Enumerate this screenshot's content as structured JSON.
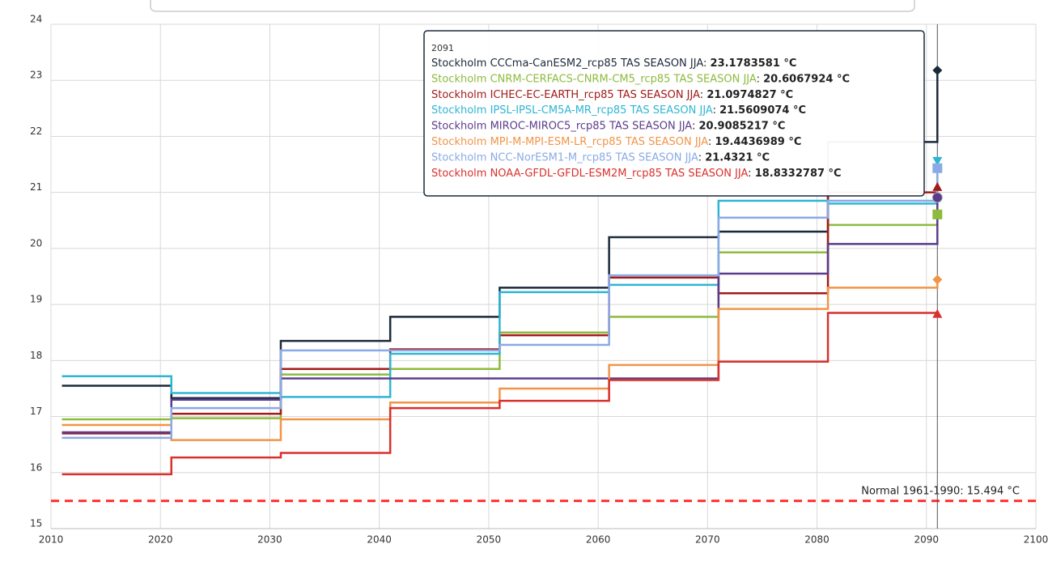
{
  "chart_data": {
    "type": "step-line",
    "x": [
      2011,
      2021,
      2031,
      2041,
      2051,
      2061,
      2071,
      2081,
      2091
    ],
    "xlim": [
      2010,
      2100
    ],
    "xticks": [
      2010,
      2020,
      2030,
      2040,
      2050,
      2060,
      2070,
      2080,
      2090,
      2100
    ],
    "ylim": [
      15,
      24
    ],
    "yticks": [
      15,
      16,
      17,
      18,
      19,
      20,
      21,
      22,
      23,
      24
    ],
    "grid": true,
    "series": [
      {
        "name": "Stockholm CCCma-CanESM2_rcp85 TAS SEASON JJA",
        "color": "#1b2a3a",
        "marker": "diamond",
        "values": [
          17.55,
          17.33,
          18.35,
          18.78,
          19.3,
          20.2,
          20.3,
          21.9,
          23.1783581
        ]
      },
      {
        "name": "Stockholm CNRM-CERFACS-CNRM-CM5_rcp85 TAS SEASON JJA",
        "color": "#8dbb3c",
        "marker": "square",
        "values": [
          16.95,
          16.97,
          17.75,
          17.85,
          18.5,
          18.78,
          19.93,
          20.42,
          20.6067924
        ]
      },
      {
        "name": "Stockholm ICHEC-EC-EARTH_rcp85 TAS SEASON JJA",
        "color": "#a31a1a",
        "marker": "triangle",
        "values": [
          16.7,
          17.05,
          17.85,
          18.2,
          18.45,
          19.48,
          19.2,
          21.0,
          21.0974827
        ]
      },
      {
        "name": "Stockholm IPSL-IPSL-CM5A-MR_rcp85 TAS SEASON JJA",
        "color": "#2fb5d4",
        "marker": "triangle-down",
        "values": [
          17.72,
          17.42,
          17.35,
          18.12,
          19.22,
          19.35,
          20.85,
          20.8,
          21.5609074
        ]
      },
      {
        "name": "Stockholm MIROC-MIROC5_rcp85 TAS SEASON JJA",
        "color": "#5b3c8c",
        "marker": "circle",
        "values": [
          16.72,
          17.3,
          17.68,
          17.68,
          17.68,
          17.68,
          19.55,
          20.08,
          20.9085217
        ]
      },
      {
        "name": "Stockholm MPI-M-MPI-ESM-LR_rcp85 TAS SEASON JJA",
        "color": "#f29447",
        "marker": "diamond",
        "values": [
          16.85,
          16.58,
          16.95,
          17.25,
          17.5,
          17.92,
          18.92,
          19.3,
          19.4436989
        ]
      },
      {
        "name": "Stockholm NCC-NorESM1-M_rcp85 TAS SEASON JJA",
        "color": "#8aaae5",
        "marker": "square",
        "values": [
          16.62,
          17.15,
          18.18,
          18.18,
          18.28,
          19.52,
          20.55,
          20.85,
          21.4321
        ]
      },
      {
        "name": "Stockholm NOAA-GFDL-GFDL-ESM2M_rcp85 TAS SEASON JJA",
        "color": "#d9312d",
        "marker": "triangle",
        "values": [
          15.97,
          16.27,
          16.35,
          17.15,
          17.28,
          17.65,
          17.98,
          18.85,
          18.8332787
        ]
      }
    ],
    "reference_line": {
      "value": 15.494,
      "label": "Normal 1961-1990: 15.494 °C",
      "color": "#ff2a2a"
    },
    "tooltip": {
      "x": 2091,
      "values": [
        "23.1783581 °C",
        "20.6067924 °C",
        "21.0974827 °C",
        "21.5609074 °C",
        "20.9085217 °C",
        "19.4436989 °C",
        "21.4321 °C",
        "18.8332787 °C"
      ]
    }
  }
}
